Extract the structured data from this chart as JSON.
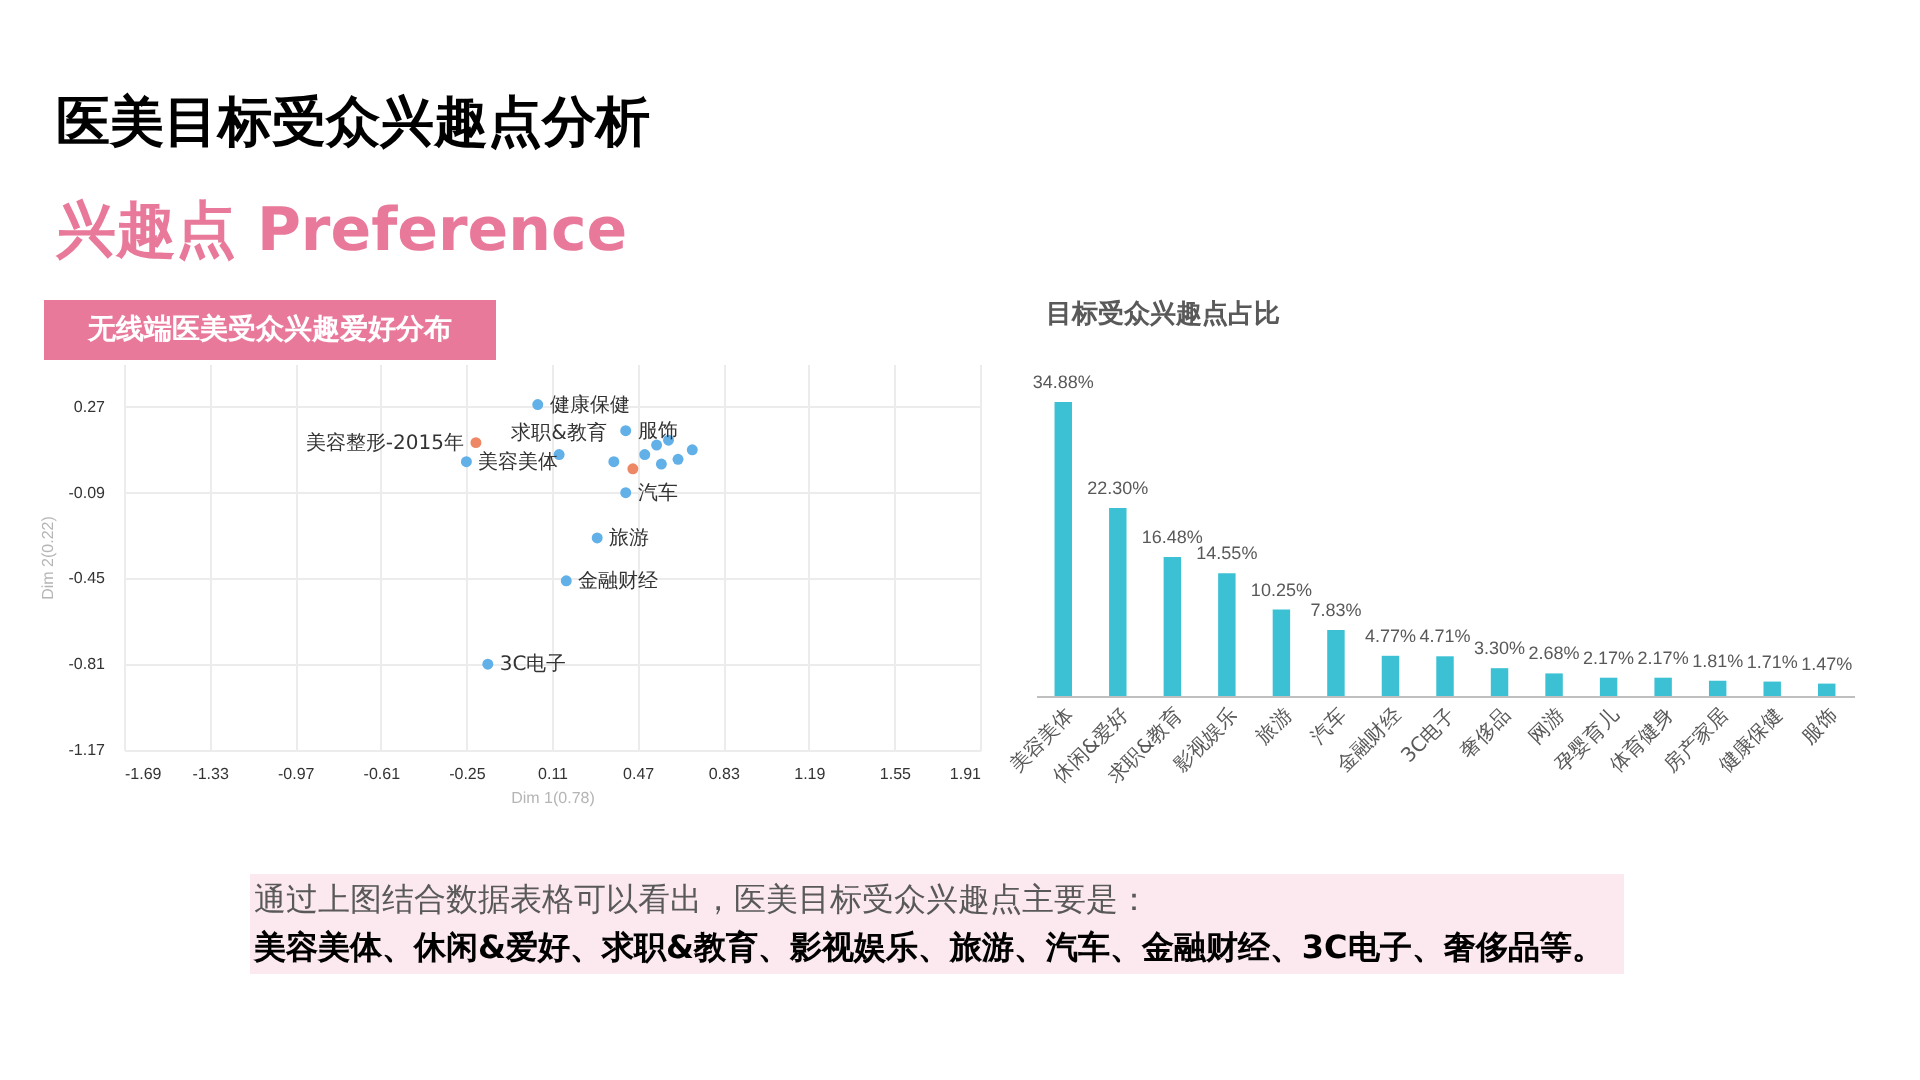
{
  "chart_data": [
    {
      "type": "other",
      "title": "医美目标受众兴趣点分析",
      "subtitle": "兴趣点 Preference"
    },
    {
      "type": "scatter",
      "title": "无线端医美受众兴趣爱好分布",
      "xlabel": "Dim 1(0.78)",
      "ylabel": "Dim 2(0.22)",
      "xlim": [
        -1.69,
        1.91
      ],
      "ylim": [
        -1.17,
        0.45
      ],
      "xticks": [
        -1.69,
        -1.33,
        -0.97,
        -0.61,
        -0.25,
        0.11,
        0.47,
        0.83,
        1.19,
        1.55,
        1.91
      ],
      "yticks": [
        -1.17,
        -0.81,
        -0.45,
        -0.09,
        0.27
      ],
      "grid": true,
      "marker": "circle",
      "series": [
        {
          "color": "#62b0e8",
          "x": [
            0.05,
            -0.25,
            0.14,
            0.42,
            0.42,
            0.3,
            0.17,
            -0.16,
            0.37,
            0.5,
            0.55,
            0.6,
            0.57,
            0.64,
            0.7
          ],
          "values": [
            0.28,
            0.04,
            0.07,
            0.17,
            -0.09,
            -0.28,
            -0.46,
            -0.81,
            0.04,
            0.07,
            0.11,
            0.13,
            0.03,
            0.05,
            0.09
          ]
        },
        {
          "color": "#ee8766",
          "x": [
            -0.21,
            0.45
          ],
          "values": [
            0.12,
            0.01
          ]
        }
      ],
      "annotations": [
        {
          "text": "健康保健",
          "x": 0.05,
          "y": 0.28
        },
        {
          "text": "美容整形-2015年",
          "x": -0.21,
          "y": 0.12
        },
        {
          "text": "美容美体",
          "x": -0.25,
          "y": 0.04
        },
        {
          "text": "求职&教育",
          "x": 0.14,
          "y": 0.07
        },
        {
          "text": "服饰",
          "x": 0.42,
          "y": 0.17
        },
        {
          "text": "汽车",
          "x": 0.42,
          "y": -0.09
        },
        {
          "text": "旅游",
          "x": 0.3,
          "y": -0.28
        },
        {
          "text": "金融财经",
          "x": 0.17,
          "y": -0.46
        },
        {
          "text": "3C电子",
          "x": -0.16,
          "y": -0.81
        }
      ]
    },
    {
      "type": "bar",
      "title": "目标受众兴趣点占比",
      "categories": [
        "美容美体",
        "休闲&爱好",
        "求职&教育",
        "影视娱乐",
        "旅游",
        "汽车",
        "金融财经",
        "3C电子",
        "奢侈品",
        "网游",
        "孕婴育儿",
        "体育健身",
        "房产家居",
        "健康保健",
        "服饰"
      ],
      "values": [
        34.88,
        22.3,
        16.48,
        14.55,
        10.25,
        7.83,
        4.77,
        4.71,
        3.3,
        2.68,
        2.17,
        2.17,
        1.81,
        1.71,
        1.47
      ],
      "value_labels": [
        "34.88%",
        "22.30%",
        "16.48%",
        "14.55%",
        "10.25%",
        "7.83%",
        "4.77%",
        "4.71%",
        "3.30%",
        "2.68%",
        "2.17%",
        "2.17%",
        "1.81%",
        "1.71%",
        "1.47%"
      ],
      "color": "#3bc1d3"
    },
    {
      "type": "other",
      "annotations": [
        "通过上图结合数据表格可以看出，医美目标受众兴趣点主要是：",
        "美容美体、休闲&爱好、求职&教育、影视娱乐、旅游、汽车、金融财经、3C电子、奢侈品等。"
      ]
    }
  ]
}
